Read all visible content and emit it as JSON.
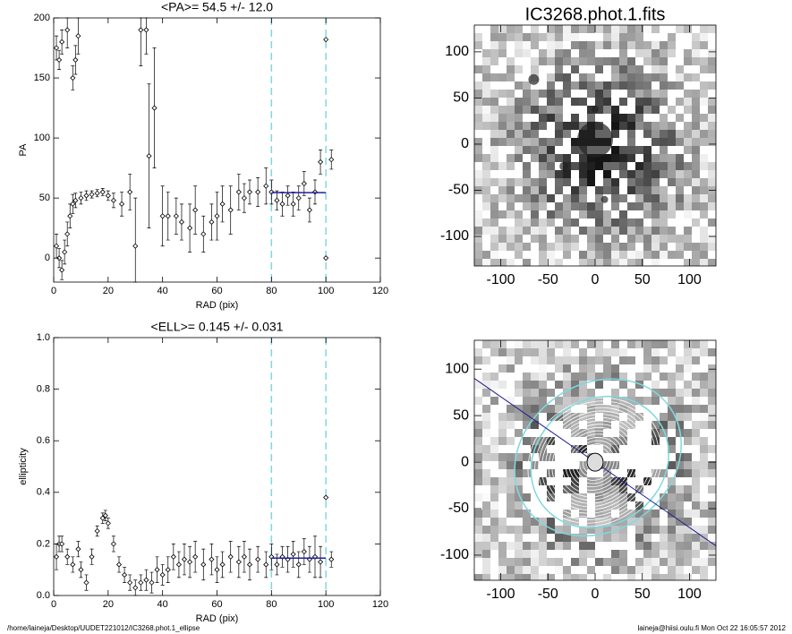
{
  "chart_data": [
    {
      "type": "scatter",
      "title": "<PA>=  54.5 +/-  12.0",
      "x_label": "RAD (pix)",
      "y_label": "PA",
      "xlim": [
        0,
        120
      ],
      "ylim": [
        -20,
        200
      ],
      "xticks": [
        0,
        20,
        40,
        60,
        80,
        100,
        120
      ],
      "yticks": [
        0,
        50,
        100,
        150,
        200
      ],
      "vlines": [
        80,
        100
      ],
      "fit": {
        "value": 54.5,
        "x": [
          80,
          100
        ],
        "color": "#2020a0"
      },
      "vline_color": "#7fd8e0",
      "x": [
        1,
        2,
        3,
        5,
        7,
        8,
        9,
        1,
        2,
        3,
        4,
        5,
        6,
        7,
        8,
        10,
        12,
        14,
        16,
        18,
        20,
        22,
        25,
        28,
        30,
        32,
        34,
        35,
        37,
        40,
        42,
        45,
        47,
        50,
        52,
        55,
        58,
        60,
        62,
        65,
        68,
        70,
        72,
        75,
        78,
        80,
        82,
        84,
        86,
        88,
        90,
        92,
        94,
        96,
        98,
        100,
        100,
        102
      ],
      "series": [
        {
          "color": "#000000",
          "values": [
            175,
            165,
            180,
            190,
            150,
            165,
            185,
            10,
            0,
            -10,
            5,
            20,
            35,
            45,
            48,
            50,
            52,
            53,
            54,
            55,
            52,
            48,
            45,
            55,
            10,
            190,
            190,
            85,
            125,
            35,
            35,
            35,
            30,
            25,
            40,
            20,
            30,
            35,
            45,
            40,
            55,
            50,
            55,
            55,
            60,
            55,
            48,
            45,
            52,
            45,
            50,
            62,
            40,
            55,
            80,
            0,
            182,
            82
          ],
          "errors": [
            10,
            8,
            10,
            15,
            10,
            12,
            15,
            10,
            8,
            8,
            10,
            10,
            10,
            8,
            6,
            5,
            4,
            3,
            3,
            3,
            4,
            6,
            10,
            15,
            40,
            30,
            20,
            60,
            50,
            25,
            20,
            15,
            15,
            20,
            20,
            15,
            15,
            20,
            15,
            20,
            15,
            12,
            10,
            12,
            15,
            10,
            8,
            10,
            8,
            10,
            10,
            10,
            10,
            10,
            10,
            0,
            0,
            8
          ]
        }
      ]
    },
    {
      "type": "scatter",
      "title": "<ELL>= 0.145 +/-  0.031",
      "x_label": "RAD (pix)",
      "y_label": "ellipticity",
      "xlim": [
        0,
        120
      ],
      "ylim": [
        0,
        1
      ],
      "xticks": [
        0,
        20,
        40,
        60,
        80,
        100,
        120
      ],
      "yticks": [
        {
          "value": 0,
          "label": "0.0"
        },
        0.2,
        0.4,
        0.6,
        0.8,
        {
          "value": 1,
          "label": "1.0"
        }
      ],
      "vlines": [
        80,
        100
      ],
      "fit": {
        "value": 0.145,
        "x": [
          80,
          100
        ],
        "color": "#2020a0"
      },
      "vline_color": "#7fd8e0",
      "x": [
        1,
        2,
        3,
        5,
        7,
        9,
        10,
        12,
        14,
        16,
        18,
        19,
        20,
        22,
        24,
        26,
        28,
        30,
        32,
        34,
        36,
        38,
        40,
        42,
        44,
        46,
        48,
        50,
        52,
        55,
        58,
        60,
        62,
        65,
        68,
        70,
        72,
        75,
        78,
        80,
        82,
        84,
        86,
        88,
        90,
        92,
        94,
        96,
        98,
        100,
        102
      ],
      "series": [
        {
          "color": "#000000",
          "values": [
            0.15,
            0.2,
            0.2,
            0.15,
            0.12,
            0.18,
            0.1,
            0.05,
            0.15,
            0.25,
            0.3,
            0.31,
            0.28,
            0.2,
            0.12,
            0.08,
            0.05,
            0.03,
            0.05,
            0.06,
            0.05,
            0.1,
            0.08,
            0.1,
            0.15,
            0.12,
            0.14,
            0.13,
            0.15,
            0.12,
            0.14,
            0.1,
            0.12,
            0.15,
            0.13,
            0.15,
            0.12,
            0.14,
            0.12,
            0.15,
            0.12,
            0.15,
            0.14,
            0.16,
            0.12,
            0.17,
            0.14,
            0.15,
            0.13,
            0.38,
            0.14
          ],
          "errors": [
            0.05,
            0.03,
            0.03,
            0.03,
            0.03,
            0.03,
            0.03,
            0.03,
            0.03,
            0.02,
            0.02,
            0.02,
            0.02,
            0.03,
            0.03,
            0.03,
            0.03,
            0.03,
            0.03,
            0.04,
            0.04,
            0.05,
            0.04,
            0.05,
            0.05,
            0.05,
            0.06,
            0.06,
            0.06,
            0.06,
            0.06,
            0.05,
            0.05,
            0.06,
            0.06,
            0.06,
            0.06,
            0.05,
            0.05,
            0.05,
            0.04,
            0.04,
            0.05,
            0.05,
            0.05,
            0.05,
            0.05,
            0.08,
            0.06,
            0,
            0.03
          ]
        }
      ]
    },
    {
      "type": "image",
      "title": "IC3268.phot.1.fits",
      "xlim": [
        -128,
        128
      ],
      "ylim": [
        -132,
        129
      ],
      "xticks": [
        -100,
        -50,
        0,
        50,
        100
      ],
      "yticks": [
        -100,
        -50,
        0,
        50,
        100
      ]
    },
    {
      "type": "image",
      "xlim": [
        -128,
        128
      ],
      "ylim": [
        -127,
        131
      ],
      "xticks": [
        -100,
        -50,
        0,
        50,
        100
      ],
      "yticks": [
        -100,
        -50,
        0,
        50,
        100
      ]
    }
  ],
  "footer": {
    "left": "/home/laineja/Desktop/UUDET221012/IC3268.phot.1_ellipse",
    "right": "laineja@hiisi.oulu.fi  Mon Oct 22 16:05:57 2012"
  }
}
